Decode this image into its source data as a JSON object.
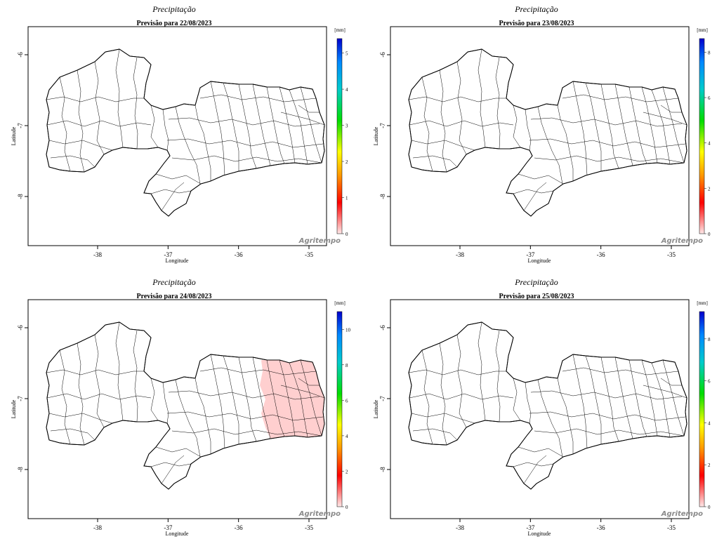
{
  "brand_color": "#8a8a8a",
  "colorbar_gradient": [
    "#ffe8e8",
    "#ff0000",
    "#ff9900",
    "#ffff00",
    "#00dd00",
    "#00cccc",
    "#0088ff",
    "#0000cc"
  ],
  "panels": [
    {
      "title": "Precipitação",
      "subtitle": "Previsão para 22/08/2023",
      "xlabel": "Longitude",
      "ylabel": "Latitude",
      "unit": "[mm]",
      "xticks": [
        "-38",
        "-37",
        "-36",
        "-35"
      ],
      "yticks": [
        "-6",
        "-7",
        "-8"
      ],
      "colorbar_ticks": [
        "0",
        "1",
        "2",
        "3",
        "4",
        "5"
      ],
      "colorbar_max": 5.4,
      "highlight": "none",
      "brand": "Agritempo"
    },
    {
      "title": "Precipitação",
      "subtitle": "Previsão para 23/08/2023",
      "xlabel": "Longitude",
      "ylabel": "Latitude",
      "unit": "[mm]",
      "xticks": [
        "-38",
        "-37",
        "-36",
        "-35"
      ],
      "yticks": [
        "-6",
        "-7",
        "-8"
      ],
      "colorbar_ticks": [
        "0",
        "2",
        "4",
        "6",
        "8"
      ],
      "colorbar_max": 8.6,
      "highlight": "none",
      "brand": "Agritempo"
    },
    {
      "title": "Precipitação",
      "subtitle": "Previsão para 24/08/2023",
      "xlabel": "Longitude",
      "ylabel": "Latitude",
      "unit": "[mm]",
      "xticks": [
        "-38",
        "-37",
        "-36",
        "-35"
      ],
      "yticks": [
        "-6",
        "-7",
        "-8"
      ],
      "colorbar_ticks": [
        "0",
        "2",
        "4",
        "6",
        "8",
        "10"
      ],
      "colorbar_max": 11,
      "highlight": "east-coast-light-precipitation",
      "brand": "Agritempo"
    },
    {
      "title": "Precipitação",
      "subtitle": "Previsão para 25/08/2023",
      "xlabel": "Longitude",
      "ylabel": "Latitude",
      "unit": "[mm]",
      "xticks": [
        "-38",
        "-37",
        "-36",
        "-35"
      ],
      "yticks": [
        "-6",
        "-7",
        "-8"
      ],
      "colorbar_ticks": [
        "0",
        "2",
        "4",
        "6",
        "8"
      ],
      "colorbar_max": 9.3,
      "highlight": "none",
      "brand": "Agritempo"
    }
  ]
}
